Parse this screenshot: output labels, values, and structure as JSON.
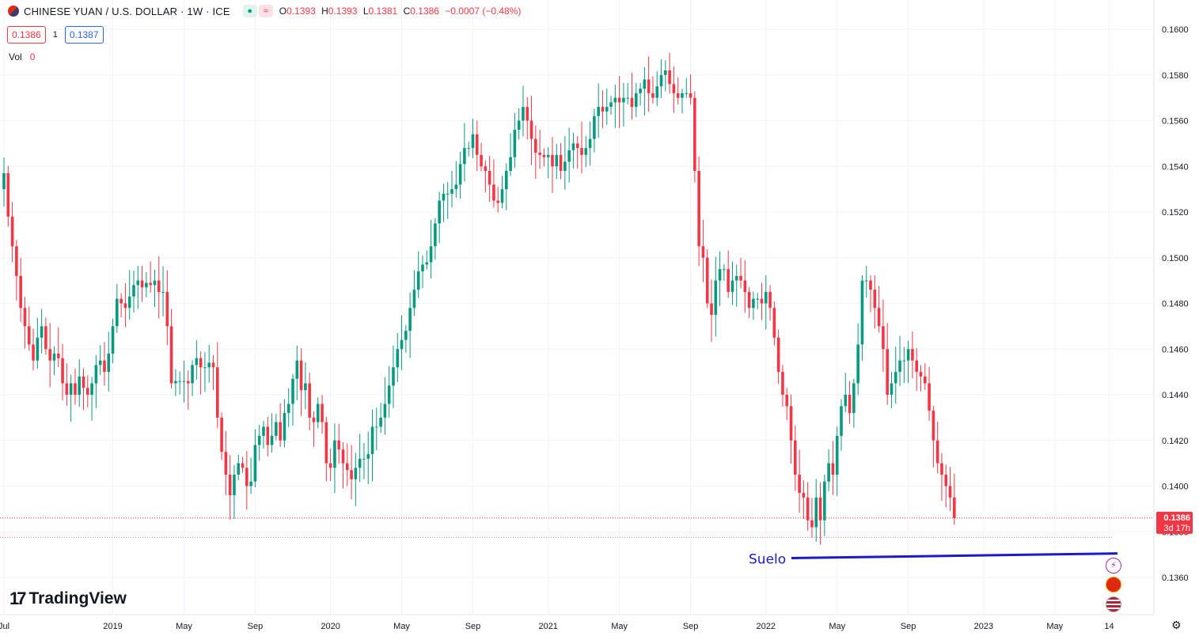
{
  "header": {
    "symbol_title": "CHINESE YUAN / U.S. DOLLAR · 1W · ICE",
    "ohlc": {
      "o_label": "O",
      "o": "0.1393",
      "h_label": "H",
      "h": "0.1393",
      "l_label": "L",
      "l": "0.1381",
      "c_label": "C",
      "c": "0.1386",
      "change": "−0.0007 (−0.48%)"
    },
    "bid": "0.1386",
    "spread": "1",
    "ask": "0.1387",
    "vol_label": "Vol",
    "vol_value": "0"
  },
  "branding": "TradingView",
  "price_label": {
    "value": "0.1386",
    "countdown": "3d 17h"
  },
  "colors": {
    "up": "#089981",
    "down": "#f23645",
    "annotation": "#1a1acc",
    "grid": "#f0f3fa"
  },
  "chart_data": {
    "type": "candlestick",
    "title": "CHINESE YUAN / U.S. DOLLAR · 1W · ICE",
    "ylim": [
      0.1355,
      0.161
    ],
    "y_ticks": [
      "0.1600",
      "0.1580",
      "0.1560",
      "0.1540",
      "0.1520",
      "0.1500",
      "0.1480",
      "0.1460",
      "0.1440",
      "0.1420",
      "0.1400",
      "0.1380",
      "0.1360"
    ],
    "x_ticks": [
      "Jul",
      "2019",
      "May",
      "Sep",
      "2020",
      "May",
      "Sep",
      "2021",
      "May",
      "Sep",
      "2022",
      "May",
      "Sep",
      "2023",
      "May",
      "14"
    ],
    "x_tick_weeks": [
      0,
      26,
      43,
      60,
      78,
      95,
      112,
      130,
      147,
      164,
      182,
      199,
      216,
      234,
      251,
      264
    ],
    "candles_weekly_close": [
      0.1537,
      0.1518,
      0.1505,
      0.1492,
      0.1478,
      0.147,
      0.1462,
      0.1455,
      0.1465,
      0.147,
      0.146,
      0.1455,
      0.1458,
      0.1456,
      0.1445,
      0.144,
      0.1445,
      0.144,
      0.1448,
      0.1443,
      0.144,
      0.1445,
      0.1453,
      0.1455,
      0.145,
      0.1458,
      0.147,
      0.1482,
      0.148,
      0.1478,
      0.1483,
      0.1488,
      0.149,
      0.1487,
      0.1489,
      0.1488,
      0.149,
      0.1485,
      0.1485,
      0.147,
      0.1445,
      0.1446,
      0.1446,
      0.1446,
      0.1445,
      0.1453,
      0.1456,
      0.1452,
      0.1452,
      0.1454,
      0.1452,
      0.143,
      0.1415,
      0.1405,
      0.1396,
      0.1405,
      0.141,
      0.1408,
      0.14,
      0.1402,
      0.1418,
      0.1422,
      0.1426,
      0.1418,
      0.1422,
      0.1428,
      0.142,
      0.1432,
      0.1436,
      0.1447,
      0.1455,
      0.1442,
      0.1445,
      0.143,
      0.1428,
      0.1436,
      0.1428,
      0.141,
      0.1408,
      0.142,
      0.1416,
      0.141,
      0.1407,
      0.1403,
      0.1408,
      0.1412,
      0.1412,
      0.1414,
      0.1426,
      0.1426,
      0.143,
      0.1436,
      0.1444,
      0.1452,
      0.146,
      0.1464,
      0.1468,
      0.1478,
      0.1486,
      0.1494,
      0.1497,
      0.1498,
      0.1505,
      0.1515,
      0.1525,
      0.1528,
      0.1528,
      0.153,
      0.1532,
      0.1541,
      0.1548,
      0.1548,
      0.1554,
      0.1545,
      0.154,
      0.1538,
      0.1532,
      0.1525,
      0.1524,
      0.153,
      0.1538,
      0.1544,
      0.1556,
      0.156,
      0.1566,
      0.156,
      0.1552,
      0.1546,
      0.1545,
      0.1544,
      0.1545,
      0.154,
      0.1545,
      0.1538,
      0.1542,
      0.1547,
      0.155,
      0.1548,
      0.1545,
      0.1548,
      0.1552,
      0.1562,
      0.1566,
      0.1564,
      0.1566,
      0.1568,
      0.157,
      0.1568,
      0.157,
      0.157,
      0.1566,
      0.1572,
      0.1574,
      0.1578,
      0.1572,
      0.157,
      0.1575,
      0.158,
      0.1582,
      0.1576,
      0.1572,
      0.157,
      0.1572,
      0.1572,
      0.157,
      0.1538,
      0.1505,
      0.15,
      0.148,
      0.1475,
      0.149,
      0.1495,
      0.1495,
      0.1485,
      0.149,
      0.1492,
      0.149,
      0.1485,
      0.1478,
      0.1482,
      0.1482,
      0.148,
      0.1485,
      0.1478,
      0.1465,
      0.145,
      0.144,
      0.1435,
      0.142,
      0.1405,
      0.1397,
      0.1395,
      0.1385,
      0.1382,
      0.1395,
      0.1385,
      0.1402,
      0.141,
      0.1405,
      0.1422,
      0.1435,
      0.144,
      0.1432,
      0.1445,
      0.1462,
      0.149,
      0.149,
      0.1486,
      0.1478,
      0.147,
      0.146,
      0.144,
      0.1445,
      0.145,
      0.1455,
      0.1455,
      0.146,
      0.1455,
      0.145,
      0.1448,
      0.1445,
      0.1433,
      0.142,
      0.141,
      0.1405,
      0.14,
      0.1395,
      0.1386
    ]
  },
  "annotation": {
    "label": "Suelo",
    "price": 0.1369
  }
}
